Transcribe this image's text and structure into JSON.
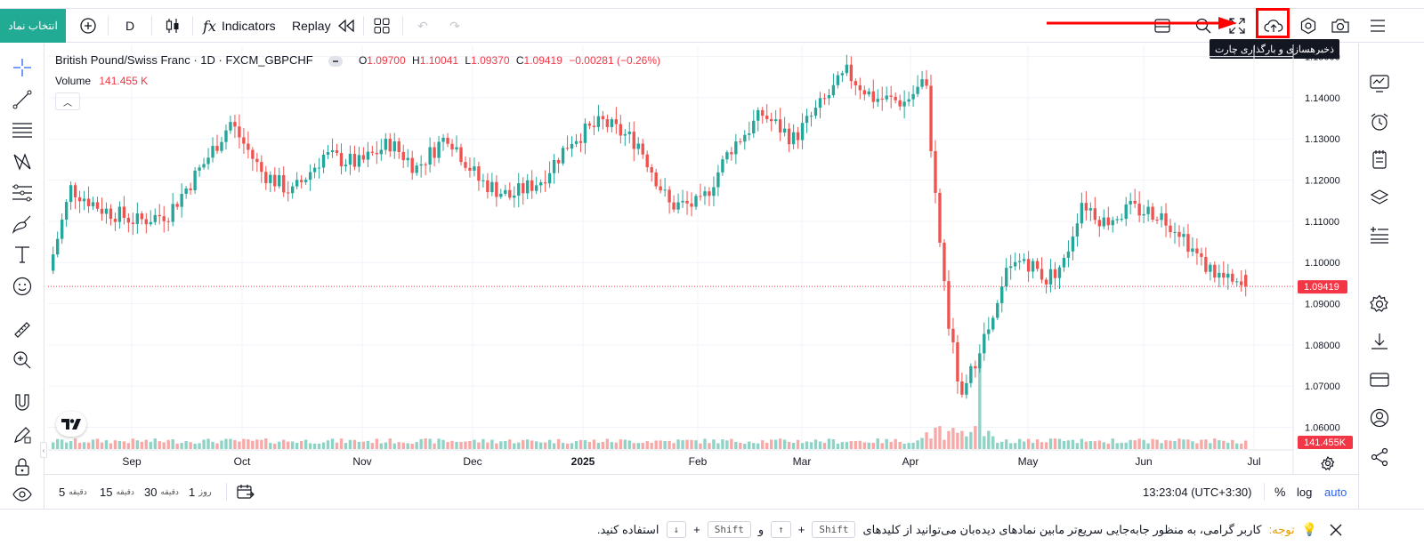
{
  "toolbar": {
    "symbol_button": "انتخاب نماد",
    "interval": "D",
    "indicators": "Indicators",
    "replay": "Replay"
  },
  "tooltip": "ذخیرهسازی و بارگذاری چارت",
  "legend": {
    "title": "British Pound/Swiss Franc · 1D · FXCM_GBPCHF",
    "o_label": "O",
    "o_value": "1.09700",
    "h_label": "H",
    "h_value": "1.10041",
    "l_label": "L",
    "l_value": "1.09370",
    "c_label": "C",
    "c_value": "1.09419",
    "change": "−0.00281 (−0.26%)",
    "volume_label": "Volume",
    "volume_value": "141.455 K"
  },
  "colors": {
    "up": "#26a69a",
    "down": "#ef5350",
    "vol_up": "#8fd3c7",
    "vol_down": "#f7a9a7",
    "accent": "#2962ff"
  },
  "chart_data": {
    "type": "candlestick",
    "price_ticks": [
      "1.15000",
      "1.14000",
      "1.13000",
      "1.12000",
      "1.11000",
      "1.10000",
      "1.09000",
      "1.08000",
      "1.07000",
      "1.06000"
    ],
    "price_range": [
      1.0545,
      1.1525
    ],
    "last_price": "1.09419",
    "last_volume": "141.455K",
    "time_labels": [
      "Sep",
      "Oct",
      "Nov",
      "Dec",
      "2025",
      "Feb",
      "Mar",
      "Apr",
      "May",
      "Jun",
      "Jul"
    ],
    "anchors": [
      {
        "i": 0,
        "p": 1.098
      },
      {
        "i": 5,
        "p": 1.118
      },
      {
        "i": 12,
        "p": 1.113
      },
      {
        "i": 20,
        "p": 1.11
      },
      {
        "i": 27,
        "p": 1.112
      },
      {
        "i": 35,
        "p": 1.124
      },
      {
        "i": 41,
        "p": 1.134
      },
      {
        "i": 48,
        "p": 1.122
      },
      {
        "i": 55,
        "p": 1.117
      },
      {
        "i": 62,
        "p": 1.126
      },
      {
        "i": 70,
        "p": 1.124
      },
      {
        "i": 77,
        "p": 1.129
      },
      {
        "i": 83,
        "p": 1.123
      },
      {
        "i": 90,
        "p": 1.131
      },
      {
        "i": 97,
        "p": 1.12
      },
      {
        "i": 104,
        "p": 1.116
      },
      {
        "i": 111,
        "p": 1.12
      },
      {
        "i": 118,
        "p": 1.13
      },
      {
        "i": 125,
        "p": 1.134
      },
      {
        "i": 133,
        "p": 1.129
      },
      {
        "i": 140,
        "p": 1.114
      },
      {
        "i": 147,
        "p": 1.114
      },
      {
        "i": 154,
        "p": 1.128
      },
      {
        "i": 161,
        "p": 1.136
      },
      {
        "i": 168,
        "p": 1.13
      },
      {
        "i": 174,
        "p": 1.138
      },
      {
        "i": 180,
        "p": 1.146
      },
      {
        "i": 186,
        "p": 1.14
      },
      {
        "i": 193,
        "p": 1.139
      },
      {
        "i": 198,
        "p": 1.144
      },
      {
        "i": 199,
        "p": 1.125
      },
      {
        "i": 201,
        "p": 1.105
      },
      {
        "i": 203,
        "p": 1.085
      },
      {
        "i": 206,
        "p": 1.066
      },
      {
        "i": 210,
        "p": 1.08
      },
      {
        "i": 213,
        "p": 1.085
      },
      {
        "i": 216,
        "p": 1.097
      },
      {
        "i": 220,
        "p": 1.101
      },
      {
        "i": 225,
        "p": 1.096
      },
      {
        "i": 229,
        "p": 1.1
      },
      {
        "i": 233,
        "p": 1.115
      },
      {
        "i": 238,
        "p": 1.11
      },
      {
        "i": 244,
        "p": 1.113
      },
      {
        "i": 250,
        "p": 1.112
      },
      {
        "i": 255,
        "p": 1.108
      },
      {
        "i": 260,
        "p": 1.1
      },
      {
        "i": 265,
        "p": 1.096
      },
      {
        "i": 268,
        "p": 1.094
      }
    ]
  },
  "bottom": {
    "tf": [
      {
        "n": "5",
        "u": "دقیقه"
      },
      {
        "n": "15",
        "u": "دقیقه"
      },
      {
        "n": "30",
        "u": "دقیقه"
      },
      {
        "n": "1",
        "u": "روز"
      }
    ],
    "clock": "13:23:04 (UTC+3:30)",
    "percent": "%",
    "log": "log",
    "auto": "auto"
  },
  "notice": {
    "prefix": "توجه:",
    "text1": "کاربر گرامی، به منظور جابه‌جایی سریع‌تر مابین نمادهای دیده‌بان می‌توانید از کلیدهای",
    "shift": "Shift",
    "plus": "+",
    "up_key": "↑",
    "and": "و",
    "down_key": "↓",
    "text2": "استفاده کنید."
  }
}
